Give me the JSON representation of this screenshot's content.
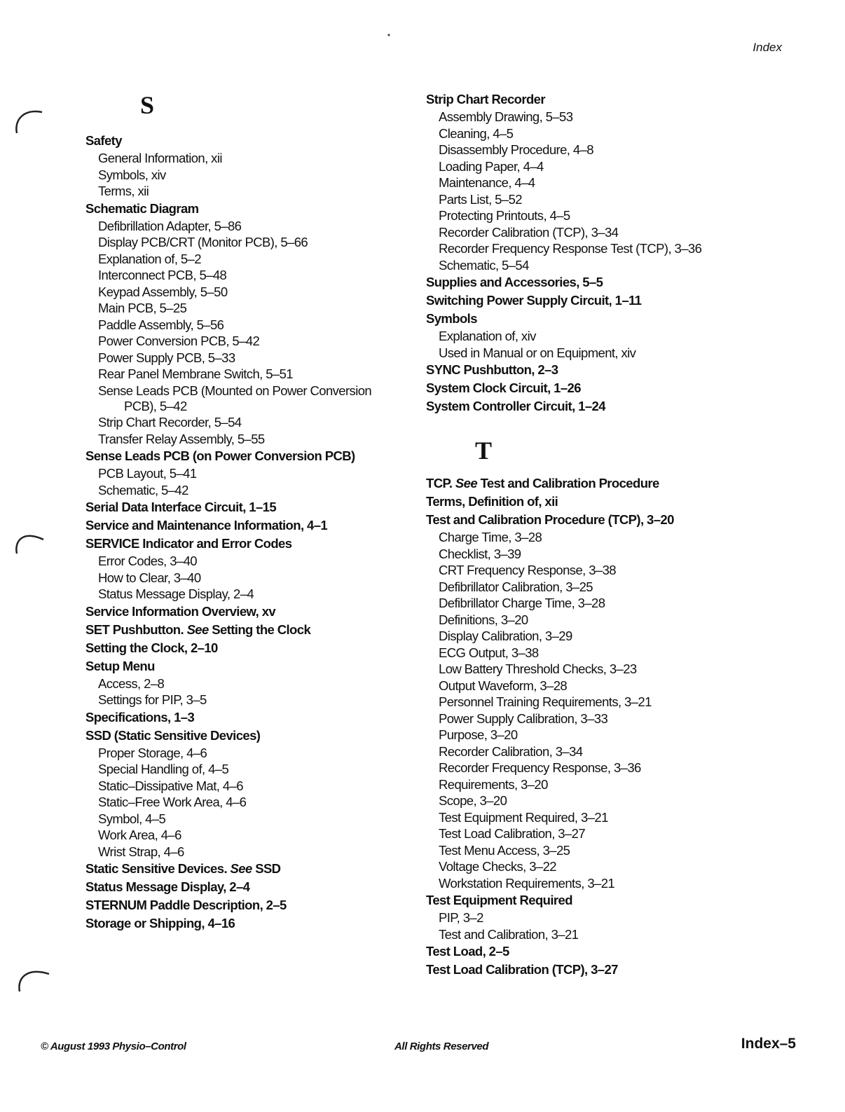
{
  "header": {
    "section": "Index"
  },
  "columns": [
    {
      "letter": "S",
      "entries": [
        {
          "level": "main",
          "text": "Safety"
        },
        {
          "level": "sub",
          "text": "General Information, xii"
        },
        {
          "level": "sub",
          "text": "Symbols, xiv"
        },
        {
          "level": "sub",
          "text": "Terms, xii"
        },
        {
          "level": "main",
          "text": "Schematic Diagram"
        },
        {
          "level": "sub",
          "text": "Defibrillation Adapter, 5–86"
        },
        {
          "level": "sub",
          "text": "Display PCB/CRT (Monitor PCB), 5–66"
        },
        {
          "level": "sub",
          "text": "Explanation of, 5–2"
        },
        {
          "level": "sub",
          "text": "Interconnect PCB, 5–48"
        },
        {
          "level": "sub",
          "text": "Keypad Assembly, 5–50"
        },
        {
          "level": "sub",
          "text": "Main PCB, 5–25"
        },
        {
          "level": "sub",
          "text": "Paddle Assembly, 5–56"
        },
        {
          "level": "sub",
          "text": "Power Conversion PCB, 5–42"
        },
        {
          "level": "sub",
          "text": "Power Supply PCB, 5–33"
        },
        {
          "level": "sub",
          "text": "Rear Panel Membrane Switch, 5–51"
        },
        {
          "level": "sub",
          "text": "Sense Leads PCB (Mounted on Power Conversion"
        },
        {
          "level": "cont",
          "text": "PCB), 5–42"
        },
        {
          "level": "sub",
          "text": "Strip Chart Recorder, 5–54"
        },
        {
          "level": "sub",
          "text": "Transfer Relay Assembly, 5–55"
        },
        {
          "level": "main",
          "text": "Sense Leads PCB (on Power Conversion PCB)"
        },
        {
          "level": "sub",
          "text": "PCB Layout, 5–41"
        },
        {
          "level": "sub",
          "text": "Schematic, 5–42"
        },
        {
          "level": "main",
          "text": "Serial Data Interface Circuit, 1–15"
        },
        {
          "level": "main",
          "text": "Service and Maintenance Information, 4–1"
        },
        {
          "level": "main",
          "text": "SERVICE Indicator and Error Codes"
        },
        {
          "level": "sub",
          "text": "Error Codes, 3–40"
        },
        {
          "level": "sub",
          "text": "How to Clear, 3–40"
        },
        {
          "level": "sub",
          "text": "Status Message Display, 2–4"
        },
        {
          "level": "main",
          "text": "Service Information Overview, xv"
        },
        {
          "level": "main",
          "text": "SET Pushbutton.",
          "see": "See",
          "target": "Setting the Clock"
        },
        {
          "level": "main",
          "text": "Setting the Clock, 2–10"
        },
        {
          "level": "main",
          "text": "Setup Menu"
        },
        {
          "level": "sub",
          "text": "Access, 2–8"
        },
        {
          "level": "sub",
          "text": "Settings for PIP, 3–5"
        },
        {
          "level": "main",
          "text": "Specifications, 1–3"
        },
        {
          "level": "main",
          "text": "SSD (Static Sensitive Devices)"
        },
        {
          "level": "sub",
          "text": "Proper Storage, 4–6"
        },
        {
          "level": "sub",
          "text": "Special Handling of, 4–5"
        },
        {
          "level": "sub",
          "text": "Static–Dissipative Mat, 4–6"
        },
        {
          "level": "sub",
          "text": "Static–Free Work Area, 4–6"
        },
        {
          "level": "sub",
          "text": "Symbol, 4–5"
        },
        {
          "level": "sub",
          "text": "Work Area, 4–6"
        },
        {
          "level": "sub",
          "text": "Wrist Strap, 4–6"
        },
        {
          "level": "main",
          "text": "Static Sensitive Devices.",
          "see": "See",
          "target": "SSD"
        },
        {
          "level": "main",
          "text": "Status Message Display, 2–4"
        },
        {
          "level": "main",
          "text": "STERNUM Paddle Description, 2–5"
        },
        {
          "level": "main",
          "text": "Storage or Shipping, 4–16"
        }
      ]
    },
    {
      "entries": [
        {
          "level": "main",
          "text": "Strip Chart Recorder"
        },
        {
          "level": "sub",
          "text": "Assembly Drawing, 5–53"
        },
        {
          "level": "sub",
          "text": "Cleaning, 4–5"
        },
        {
          "level": "sub",
          "text": "Disassembly Procedure, 4–8"
        },
        {
          "level": "sub",
          "text": "Loading Paper, 4–4"
        },
        {
          "level": "sub",
          "text": "Maintenance, 4–4"
        },
        {
          "level": "sub",
          "text": "Parts List, 5–52"
        },
        {
          "level": "sub",
          "text": "Protecting Printouts, 4–5"
        },
        {
          "level": "sub",
          "text": "Recorder Calibration (TCP), 3–34"
        },
        {
          "level": "sub",
          "text": "Recorder Frequency Response Test (TCP), 3–36"
        },
        {
          "level": "sub",
          "text": "Schematic, 5–54"
        },
        {
          "level": "main",
          "text": "Supplies and Accessories, 5–5"
        },
        {
          "level": "main",
          "text": "Switching Power Supply Circuit, 1–11"
        },
        {
          "level": "main",
          "text": "Symbols"
        },
        {
          "level": "sub",
          "text": "Explanation of, xiv"
        },
        {
          "level": "sub",
          "text": "Used in Manual or on Equipment, xiv"
        },
        {
          "level": "main",
          "text": "SYNC Pushbutton, 2–3"
        },
        {
          "level": "main",
          "text": "System Clock Circuit, 1–26"
        },
        {
          "level": "main",
          "text": "System Controller Circuit, 1–24"
        }
      ],
      "letter": "T",
      "entries2": [
        {
          "level": "main",
          "text": "TCP.",
          "see": "See",
          "target": "Test and Calibration Procedure"
        },
        {
          "level": "main",
          "text": "Terms, Definition of, xii"
        },
        {
          "level": "main",
          "text": "Test and Calibration Procedure (TCP), 3–20"
        },
        {
          "level": "sub",
          "text": "Charge Time, 3–28"
        },
        {
          "level": "sub",
          "text": "Checklist, 3–39"
        },
        {
          "level": "sub",
          "text": "CRT Frequency Response, 3–38"
        },
        {
          "level": "sub",
          "text": "Defibrillator Calibration, 3–25"
        },
        {
          "level": "sub",
          "text": "Defibrillator Charge Time, 3–28"
        },
        {
          "level": "sub",
          "text": "Definitions, 3–20"
        },
        {
          "level": "sub",
          "text": "Display Calibration, 3–29"
        },
        {
          "level": "sub",
          "text": "ECG Output, 3–38"
        },
        {
          "level": "sub",
          "text": "Low Battery Threshold Checks, 3–23"
        },
        {
          "level": "sub",
          "text": "Output Waveform, 3–28"
        },
        {
          "level": "sub",
          "text": "Personnel Training Requirements, 3–21"
        },
        {
          "level": "sub",
          "text": "Power Supply Calibration, 3–33"
        },
        {
          "level": "sub",
          "text": "Purpose, 3–20"
        },
        {
          "level": "sub",
          "text": "Recorder Calibration, 3–34"
        },
        {
          "level": "sub",
          "text": "Recorder Frequency Response, 3–36"
        },
        {
          "level": "sub",
          "text": "Requirements, 3–20"
        },
        {
          "level": "sub",
          "text": "Scope, 3–20"
        },
        {
          "level": "sub",
          "text": "Test Equipment Required, 3–21"
        },
        {
          "level": "sub",
          "text": "Test Load Calibration, 3–27"
        },
        {
          "level": "sub",
          "text": "Test Menu Access, 3–25"
        },
        {
          "level": "sub",
          "text": "Voltage Checks, 3–22"
        },
        {
          "level": "sub",
          "text": "Workstation Requirements, 3–21"
        },
        {
          "level": "main",
          "text": "Test Equipment Required"
        },
        {
          "level": "sub",
          "text": "PIP, 3–2"
        },
        {
          "level": "sub",
          "text": "Test and Calibration, 3–21"
        },
        {
          "level": "main",
          "text": "Test Load, 2–5"
        },
        {
          "level": "main",
          "text": "Test Load Calibration (TCP), 3–27"
        }
      ]
    }
  ],
  "footer": {
    "copyright": "© August 1993 Physio–Control",
    "rights": "All Rights Reserved",
    "page_number": "Index–5"
  }
}
